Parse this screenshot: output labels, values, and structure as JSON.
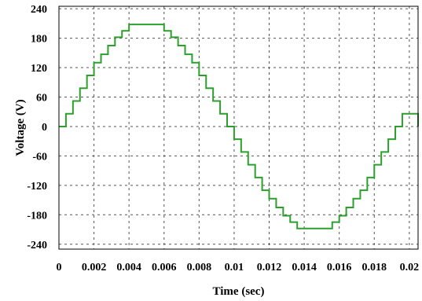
{
  "chart_data": {
    "type": "line",
    "title": "",
    "xlabel": "Time (sec)",
    "ylabel": "Voltage (V)",
    "xlim": [
      0,
      0.0205
    ],
    "ylim": [
      -250,
      245
    ],
    "grid": true,
    "x_ticks": [
      0,
      0.002,
      0.004,
      0.006,
      0.008,
      0.01,
      0.012,
      0.014,
      0.016,
      0.018,
      0.02
    ],
    "x_tick_labels": [
      "0",
      "0.002",
      "0.004",
      "0.006",
      "0.008",
      "0.01",
      "0.012",
      "0.014",
      "0.016",
      "0.018",
      "0.02"
    ],
    "y_ticks": [
      240,
      180,
      120,
      60,
      0,
      -60,
      -120,
      -180,
      -240
    ],
    "y_tick_labels": [
      "240",
      "180",
      "120",
      "60",
      "0",
      "-60",
      "-120",
      "-180",
      "-240"
    ],
    "series": [
      {
        "color": "#2ca02c",
        "step": "post",
        "x": [
          0,
          0.0004,
          0.0008,
          0.0012,
          0.0016,
          0.002,
          0.0024,
          0.0028,
          0.0032,
          0.0036,
          0.004,
          0.0044,
          0.0048,
          0.0052,
          0.0056,
          0.006,
          0.0064,
          0.0068,
          0.0072,
          0.0076,
          0.008,
          0.0084,
          0.0088,
          0.0092,
          0.0096,
          0.01,
          0.0104,
          0.0108,
          0.0112,
          0.0116,
          0.012,
          0.0124,
          0.0128,
          0.0132,
          0.0136,
          0.014,
          0.0144,
          0.0148,
          0.0152,
          0.0156,
          0.016,
          0.0164,
          0.0168,
          0.0172,
          0.0176,
          0.018,
          0.0184,
          0.0188,
          0.0192,
          0.0196,
          0.0205
        ],
        "values": [
          0,
          26,
          52,
          78,
          104,
          130,
          147,
          165,
          182,
          195,
          208,
          208,
          208,
          208,
          208,
          195,
          182,
          165,
          147,
          130,
          104,
          78,
          52,
          26,
          0,
          -26,
          -52,
          -78,
          -104,
          -130,
          -147,
          -165,
          -182,
          -195,
          -208,
          -208,
          -208,
          -208,
          -208,
          -195,
          -182,
          -165,
          -147,
          -130,
          -104,
          -78,
          -52,
          -26,
          0,
          26,
          0
        ]
      }
    ]
  }
}
